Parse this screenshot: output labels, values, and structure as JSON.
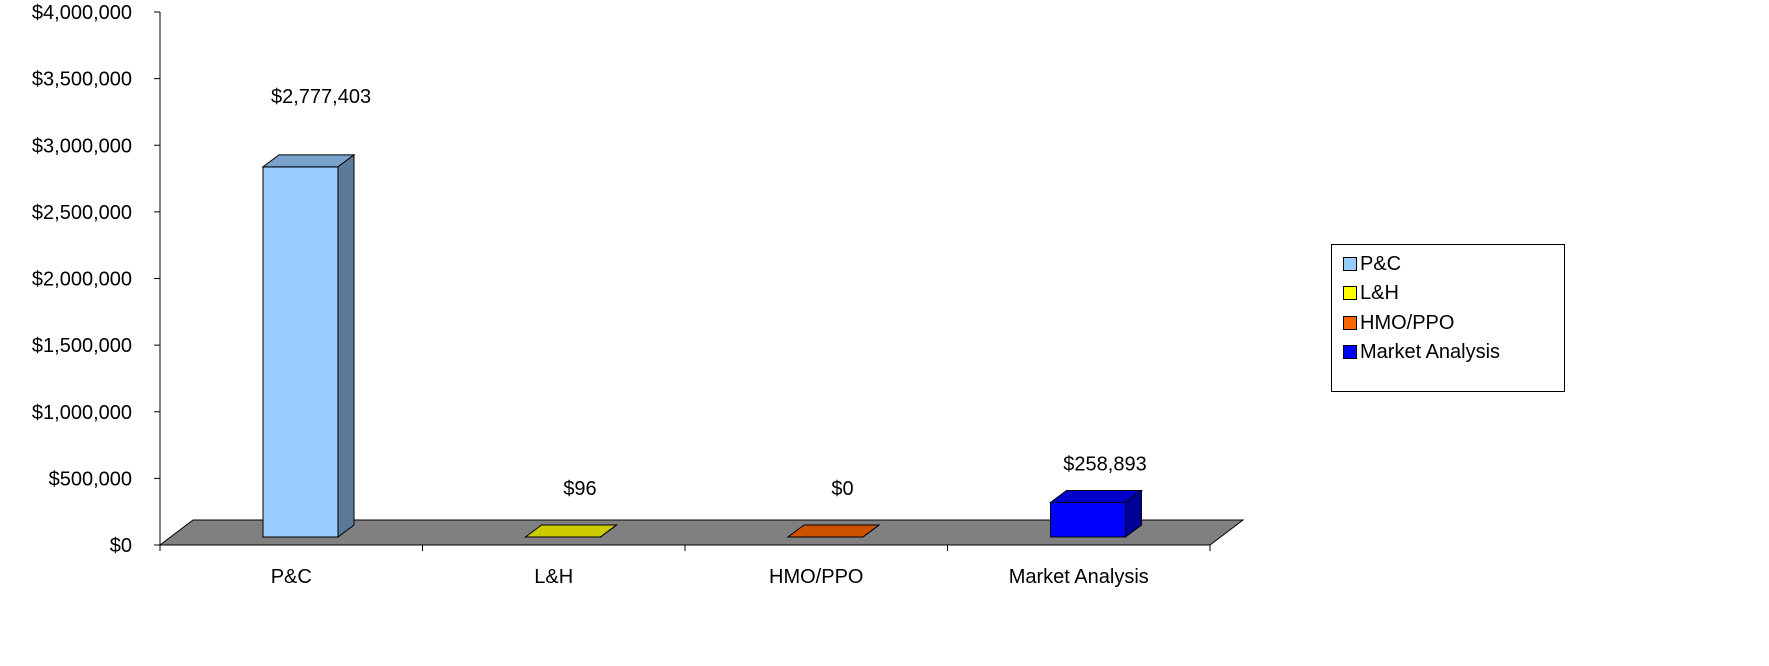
{
  "chart_data": {
    "type": "bar",
    "title": "",
    "xlabel": "",
    "ylabel": "",
    "categories": [
      "P&C",
      "L&H",
      "HMO/PPO",
      "Market Analysis"
    ],
    "values": [
      2777403,
      96,
      0,
      258893
    ],
    "value_labels": [
      "$2,777,403",
      "$96",
      "$0",
      "$258,893"
    ],
    "ylim": [
      0,
      4000000
    ],
    "y_ticks": [
      0,
      500000,
      1000000,
      1500000,
      2000000,
      2500000,
      3000000,
      3500000,
      4000000
    ],
    "y_tick_labels": [
      "$0",
      "$500,000",
      "$1,000,000",
      "$1,500,000",
      "$2,000,000",
      "$2,500,000",
      "$3,000,000",
      "$3,500,000",
      "$4,000,000"
    ],
    "grid": false,
    "three_d": true,
    "legend": {
      "position": "right",
      "entries": [
        {
          "label": "P&C",
          "color": "#99CCFF"
        },
        {
          "label": "L&H",
          "color": "#FFFF00"
        },
        {
          "label": "HMO/PPO",
          "color": "#FF6600"
        },
        {
          "label": "Market Analysis",
          "color": "#0000FF"
        }
      ]
    },
    "floor_color": "#808080"
  }
}
